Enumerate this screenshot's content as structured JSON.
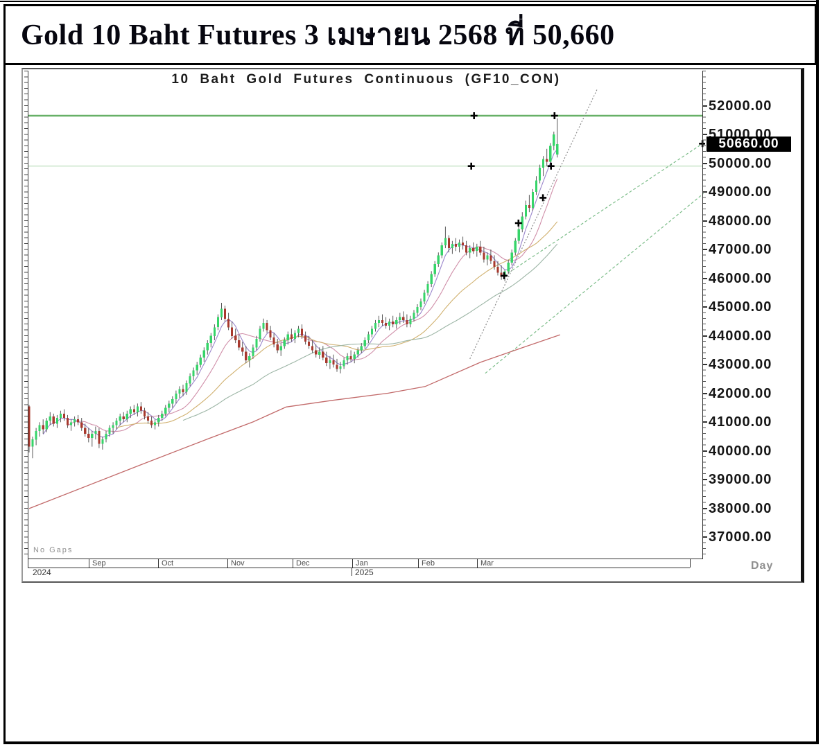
{
  "page": {
    "title": "Gold 10 Baht Futures 3 เมษายน 2568 ที่ 50,660"
  },
  "chart": {
    "title": "10 Baht Gold Futures Continuous (GF10_CON)",
    "no_gaps_label": "No Gaps",
    "axis_unit_label": "Day",
    "current_price_label": "50660.00",
    "y_ticks": [
      52000,
      51000,
      50000,
      49000,
      48000,
      47000,
      46000,
      45000,
      44000,
      43000,
      42000,
      41000,
      40000,
      39000,
      38000,
      37000
    ]
  },
  "colors": {
    "up": "#36d469",
    "down": "#a8392e",
    "wick": "#585858",
    "ma_long": "#c26a6a",
    "marker": "#000000",
    "tag_bg": "#000000",
    "tag_text": "#ffffff"
  },
  "chart_data": {
    "type": "candlestick",
    "title": "10 Baht Gold Futures Continuous (GF10_CON)",
    "timeframe": "Day",
    "current_price": 50660,
    "y_axis_ticks": [
      52000,
      51000,
      50000,
      49000,
      48000,
      47000,
      46000,
      45000,
      44000,
      43000,
      42000,
      41000,
      40000,
      39000,
      38000,
      37000
    ],
    "x_axis": {
      "months": [
        {
          "label": "Sep",
          "day": 17.0
        },
        {
          "label": "Oct",
          "day": 36.9
        },
        {
          "label": "Nov",
          "day": 56.7
        },
        {
          "label": "Dec",
          "day": 75.3
        },
        {
          "label": "Jan",
          "day": 92.4
        },
        {
          "label": "Feb",
          "day": 111.2
        },
        {
          "label": "Mar",
          "day": 128.0
        }
      ],
      "years": [
        {
          "label": "2024",
          "day": 0.6
        },
        {
          "label": "2025",
          "day": 92.8
        }
      ]
    },
    "hlines": [
      {
        "price": 51650,
        "width": 2.4,
        "color": "#67b067"
      },
      {
        "price": 49900,
        "width": 1.2,
        "color": "#b5d9b5"
      }
    ],
    "trendlines": [
      {
        "d1": 126.0,
        "p1": 43200,
        "d2": 162.5,
        "p2": 52600,
        "color": "#8b8b8b",
        "dash": "2 2.5"
      },
      {
        "d1": 135.8,
        "p1": 46090,
        "d2": 192.5,
        "p2": 50680,
        "color": "#7cbd89",
        "dash": "4 3"
      },
      {
        "d1": 130.4,
        "p1": 42700,
        "d2": 192.8,
        "p2": 48950,
        "color": "#7cbd89",
        "dash": "4 3"
      }
    ],
    "markers": [
      [
        127.2,
        51650
      ],
      [
        150.2,
        51650
      ],
      [
        126.4,
        49900
      ],
      [
        149.2,
        49900
      ],
      [
        146.9,
        48800
      ],
      [
        139.9,
        47920
      ],
      [
        135.8,
        46090
      ],
      [
        192.5,
        50680
      ]
    ],
    "ma_long": [
      [
        0,
        38000
      ],
      [
        31.3,
        39490
      ],
      [
        51.1,
        40420
      ],
      [
        64,
        41010
      ],
      [
        73.5,
        41530
      ],
      [
        86.8,
        41760
      ],
      [
        102.7,
        42010
      ],
      [
        113.2,
        42240
      ],
      [
        129,
        43080
      ],
      [
        140.3,
        43560
      ],
      [
        151.8,
        44040
      ]
    ],
    "moving_averages": [
      {
        "period": 5,
        "color": "#9a86cc"
      },
      {
        "period": 12,
        "color": "#d08fa9"
      },
      {
        "period": 26,
        "color": "#d0b06e"
      },
      {
        "period": 45,
        "color": "#9cb5a5"
      }
    ],
    "candles": [
      [
        41550,
        41600,
        39950,
        40150
      ],
      [
        40150,
        40500,
        39750,
        40400
      ],
      [
        40400,
        40800,
        40200,
        40700
      ],
      [
        40700,
        41000,
        40500,
        40900
      ],
      [
        40900,
        41100,
        40600,
        40750
      ],
      [
        40750,
        41150,
        40650,
        41050
      ],
      [
        41050,
        41350,
        40900,
        41200
      ],
      [
        41200,
        41300,
        40850,
        40950
      ],
      [
        40950,
        41250,
        40800,
        41150
      ],
      [
        41150,
        41400,
        41000,
        41300
      ],
      [
        41300,
        41450,
        41050,
        41150
      ],
      [
        41150,
        41250,
        40800,
        40900
      ],
      [
        40900,
        41100,
        40700,
        41000
      ],
      [
        41000,
        41200,
        40850,
        41100
      ],
      [
        41100,
        41250,
        40900,
        41000
      ],
      [
        41000,
        41150,
        40700,
        40800
      ],
      [
        40800,
        40950,
        40500,
        40600
      ],
      [
        40600,
        40800,
        40300,
        40450
      ],
      [
        40450,
        40700,
        40150,
        40600
      ],
      [
        40600,
        40850,
        40400,
        40700
      ],
      [
        40700,
        40800,
        40100,
        40250
      ],
      [
        40250,
        40500,
        40050,
        40400
      ],
      [
        40400,
        40700,
        40300,
        40600
      ],
      [
        40600,
        40900,
        40500,
        40800
      ],
      [
        40800,
        41000,
        40600,
        40900
      ],
      [
        40900,
        41150,
        40750,
        41050
      ],
      [
        41050,
        41300,
        40900,
        41200
      ],
      [
        41200,
        41350,
        41000,
        41100
      ],
      [
        41100,
        41400,
        41000,
        41300
      ],
      [
        41300,
        41550,
        41150,
        41450
      ],
      [
        41450,
        41600,
        41250,
        41350
      ],
      [
        41350,
        41650,
        41200,
        41550
      ],
      [
        41550,
        41700,
        41300,
        41400
      ],
      [
        41400,
        41500,
        41100,
        41200
      ],
      [
        41200,
        41350,
        40950,
        41050
      ],
      [
        41050,
        41200,
        40800,
        40900
      ],
      [
        40900,
        41100,
        40750,
        41000
      ],
      [
        41000,
        41250,
        40850,
        41150
      ],
      [
        41150,
        41400,
        41050,
        41300
      ],
      [
        41300,
        41600,
        41200,
        41500
      ],
      [
        41500,
        41750,
        41350,
        41650
      ],
      [
        41650,
        41900,
        41500,
        41800
      ],
      [
        41800,
        42100,
        41650,
        42000
      ],
      [
        42000,
        42250,
        41850,
        42150
      ],
      [
        42150,
        42300,
        41900,
        42050
      ],
      [
        42050,
        42450,
        41950,
        42350
      ],
      [
        42350,
        42700,
        42250,
        42600
      ],
      [
        42600,
        42900,
        42450,
        42800
      ],
      [
        42800,
        43100,
        42650,
        43000
      ],
      [
        43000,
        43350,
        42900,
        43250
      ],
      [
        43250,
        43600,
        43100,
        43500
      ],
      [
        43500,
        43850,
        43350,
        43750
      ],
      [
        43750,
        44100,
        43600,
        44000
      ],
      [
        44000,
        44400,
        43850,
        44300
      ],
      [
        44300,
        44750,
        44200,
        44650
      ],
      [
        44650,
        45150,
        44550,
        44950
      ],
      [
        44950,
        45050,
        44500,
        44600
      ],
      [
        44600,
        44800,
        44200,
        44300
      ],
      [
        44300,
        44500,
        43900,
        44000
      ],
      [
        44000,
        44250,
        43750,
        43850
      ],
      [
        43850,
        44050,
        43500,
        43600
      ],
      [
        43600,
        43800,
        43300,
        43450
      ],
      [
        43450,
        43650,
        43050,
        43150
      ],
      [
        43150,
        43400,
        42900,
        43300
      ],
      [
        43300,
        43700,
        43200,
        43600
      ],
      [
        43600,
        44000,
        43500,
        43900
      ],
      [
        43900,
        44350,
        43800,
        44250
      ],
      [
        44250,
        44600,
        44150,
        44450
      ],
      [
        44450,
        44550,
        44100,
        44200
      ],
      [
        44200,
        44350,
        43850,
        43950
      ],
      [
        43950,
        44100,
        43600,
        43700
      ],
      [
        43700,
        43900,
        43400,
        43500
      ],
      [
        43500,
        43750,
        43300,
        43650
      ],
      [
        43650,
        43950,
        43550,
        43850
      ],
      [
        43850,
        44150,
        43700,
        44050
      ],
      [
        44050,
        44250,
        43800,
        43900
      ],
      [
        43900,
        44200,
        43750,
        44100
      ],
      [
        44100,
        44350,
        43950,
        44250
      ],
      [
        44250,
        44400,
        43900,
        44000
      ],
      [
        44000,
        44150,
        43700,
        43800
      ],
      [
        43800,
        44000,
        43550,
        43650
      ],
      [
        43650,
        43850,
        43400,
        43500
      ],
      [
        43500,
        43700,
        43250,
        43350
      ],
      [
        43350,
        43600,
        43200,
        43450
      ],
      [
        43450,
        43650,
        43150,
        43250
      ],
      [
        43250,
        43450,
        42950,
        43050
      ],
      [
        43050,
        43300,
        42850,
        43150
      ],
      [
        43150,
        43350,
        42900,
        43000
      ],
      [
        43000,
        43200,
        42750,
        42850
      ],
      [
        42850,
        43100,
        42700,
        42950
      ],
      [
        42950,
        43250,
        42850,
        43150
      ],
      [
        43150,
        43400,
        43000,
        43300
      ],
      [
        43300,
        43500,
        43100,
        43200
      ],
      [
        43200,
        43450,
        43050,
        43350
      ],
      [
        43350,
        43600,
        43250,
        43500
      ],
      [
        43500,
        43750,
        43400,
        43650
      ],
      [
        43650,
        43950,
        43550,
        43850
      ],
      [
        43850,
        44150,
        43750,
        44050
      ],
      [
        44050,
        44350,
        43950,
        44250
      ],
      [
        44250,
        44550,
        44150,
        44450
      ],
      [
        44450,
        44700,
        44300,
        44550
      ],
      [
        44550,
        44750,
        44350,
        44450
      ],
      [
        44450,
        44650,
        44250,
        44350
      ],
      [
        44350,
        44600,
        44200,
        44500
      ],
      [
        44500,
        44700,
        44300,
        44400
      ],
      [
        44400,
        44650,
        44250,
        44550
      ],
      [
        44550,
        44800,
        44400,
        44650
      ],
      [
        44650,
        44850,
        44450,
        44550
      ],
      [
        44550,
        44750,
        44300,
        44400
      ],
      [
        44400,
        44700,
        44300,
        44600
      ],
      [
        44600,
        44900,
        44500,
        44800
      ],
      [
        44800,
        45100,
        44700,
        45000
      ],
      [
        45000,
        45300,
        44900,
        45200
      ],
      [
        45200,
        45600,
        45100,
        45500
      ],
      [
        45500,
        45900,
        45400,
        45800
      ],
      [
        45800,
        46250,
        45700,
        46150
      ],
      [
        46150,
        46600,
        46050,
        46500
      ],
      [
        46500,
        46900,
        46400,
        46800
      ],
      [
        46800,
        47250,
        46700,
        47150
      ],
      [
        47150,
        47800,
        47050,
        47400
      ],
      [
        47400,
        47500,
        46900,
        47050
      ],
      [
        47050,
        47300,
        46850,
        47200
      ],
      [
        47200,
        47400,
        46950,
        47100
      ],
      [
        47100,
        47350,
        46900,
        47250
      ],
      [
        47250,
        47450,
        47000,
        47150
      ],
      [
        47150,
        47300,
        46800,
        46900
      ],
      [
        46900,
        47150,
        46700,
        47050
      ],
      [
        47050,
        47250,
        46850,
        46950
      ],
      [
        46950,
        47200,
        46750,
        47100
      ],
      [
        47100,
        47300,
        46800,
        46900
      ],
      [
        46900,
        47100,
        46550,
        46650
      ],
      [
        46650,
        46900,
        46450,
        46800
      ],
      [
        46800,
        47000,
        46500,
        46600
      ],
      [
        46600,
        46800,
        46300,
        46400
      ],
      [
        46400,
        46600,
        46100,
        46200
      ],
      [
        46200,
        46450,
        45950,
        46050
      ],
      [
        46050,
        46300,
        45900,
        46250
      ],
      [
        46250,
        46650,
        46150,
        46550
      ],
      [
        46550,
        47000,
        46450,
        46900
      ],
      [
        46900,
        47400,
        46800,
        47300
      ],
      [
        47300,
        47850,
        47200,
        47700
      ],
      [
        47700,
        48300,
        47600,
        48150
      ],
      [
        48150,
        48700,
        48050,
        48550
      ],
      [
        48550,
        48900,
        48300,
        48450
      ],
      [
        48450,
        49100,
        48350,
        49000
      ],
      [
        49000,
        49550,
        48900,
        49400
      ],
      [
        49400,
        49950,
        49300,
        49850
      ],
      [
        49850,
        50250,
        49550,
        50150
      ],
      [
        50150,
        50500,
        49900,
        50050
      ],
      [
        50050,
        50700,
        49950,
        50600
      ],
      [
        50600,
        51100,
        50450,
        51000
      ],
      [
        50300,
        51560,
        50200,
        50660
      ]
    ]
  }
}
